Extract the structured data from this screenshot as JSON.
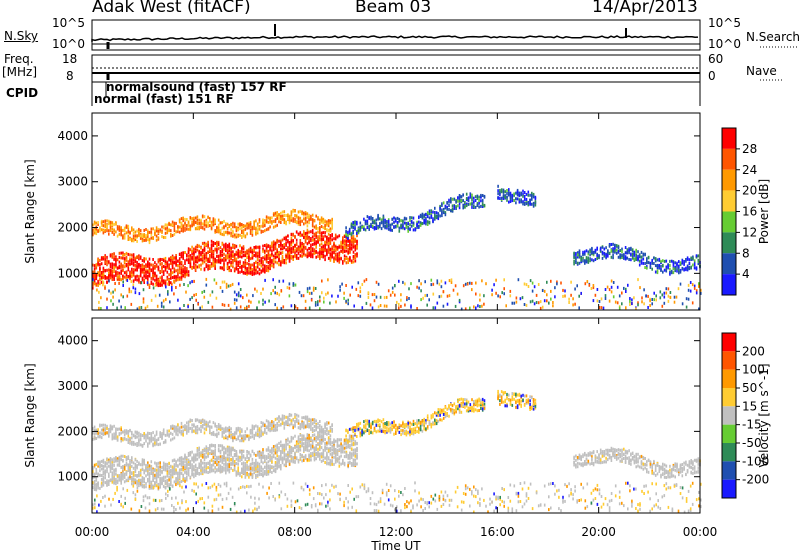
{
  "header": {
    "station": "Adak West (fitACF)",
    "beam": "Beam 03",
    "date": "14/Apr/2013"
  },
  "params": {
    "nsky_label": "N.Sky",
    "nsky_ticks": [
      "10^5",
      "10^0"
    ],
    "nsearch_label": "N.Search",
    "nsearch_ticks": [
      "10^5",
      "10^0"
    ],
    "freq_label_1": "Freq.",
    "freq_label_2": "[MHz]",
    "freq_ticks": [
      "18",
      "8"
    ],
    "nave_label": "Nave",
    "nave_ticks": [
      "60",
      "0"
    ],
    "cpid_label": "CPID",
    "cpid_annotations": [
      "normalsound (fast) 157 RF",
      "normal (fast) 151 RF"
    ]
  },
  "chart_data": [
    {
      "type": "heatmap",
      "panel": "power",
      "xlabel": "",
      "ylabel": "Slant Range [km]",
      "y_ticks": [
        1000,
        2000,
        3000,
        4000
      ],
      "ylim": [
        200,
        4500
      ],
      "xlim_hours": [
        0,
        24
      ],
      "colorbar": {
        "label": "Power [dB]",
        "ticks": [
          4,
          8,
          12,
          16,
          20,
          24,
          28
        ],
        "colors": [
          "#1a1aff",
          "#1f4fb0",
          "#2e8b57",
          "#66cc33",
          "#ffcc33",
          "#ff9900",
          "#ff5500",
          "#ff0000"
        ]
      },
      "echo_bands": [
        {
          "t0": 0,
          "t1": 10.5,
          "r_start": 1000,
          "r_end": 1700,
          "level": "high"
        },
        {
          "t0": 0,
          "t1": 9.5,
          "r_start": 1900,
          "r_end": 2200,
          "level": "mid"
        },
        {
          "t0": 10,
          "t1": 15.5,
          "r_start": 1900,
          "r_end": 2600,
          "level": "low"
        },
        {
          "t0": 16,
          "t1": 17.5,
          "r_start": 2900,
          "r_end": 2500,
          "level": "low"
        },
        {
          "t0": 19,
          "t1": 24,
          "r_start": 1500,
          "r_end": 1200,
          "level": "low"
        }
      ]
    },
    {
      "type": "heatmap",
      "panel": "velocity",
      "xlabel": "Time UT",
      "ylabel": "Slant Range [km]",
      "x_ticks": [
        "00:00",
        "04:00",
        "08:00",
        "12:00",
        "16:00",
        "20:00",
        "00:00"
      ],
      "y_ticks": [
        1000,
        2000,
        3000,
        4000
      ],
      "ylim": [
        200,
        4500
      ],
      "xlim_hours": [
        0,
        24
      ],
      "colorbar": {
        "label": "Velocity [m s^-1]",
        "ticks": [
          200,
          100,
          50,
          15,
          -15,
          -50,
          -100,
          -200
        ],
        "colors": [
          "#1a1aff",
          "#1f4fb0",
          "#2e8b57",
          "#66cc33",
          "#c0c0c0",
          "#ffcc33",
          "#ff9900",
          "#ff5500",
          "#ff0000"
        ]
      },
      "ground_scatter_color": "#c0c0c0"
    }
  ]
}
